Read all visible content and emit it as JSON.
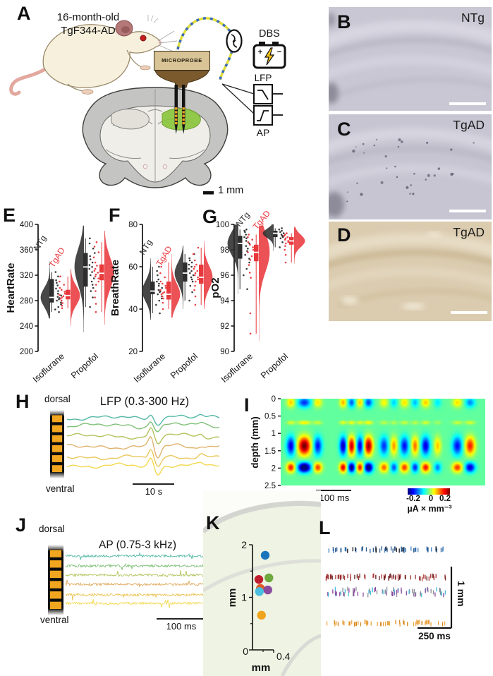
{
  "figure": {
    "panels": {
      "a": {
        "label": "A",
        "subject_line1": "16-month-old",
        "subject_line2": "TgF344-AD",
        "microprobe_label": "MICROPROBE",
        "dbs_label": "DBS",
        "lfp_label": "LFP",
        "ap_label": "AP",
        "scalebar_label": "1 mm"
      },
      "b": {
        "label": "B",
        "genotype": "NTg"
      },
      "c": {
        "label": "C",
        "genotype": "TgAD"
      },
      "d": {
        "label": "D",
        "genotype": "TgAD"
      },
      "e": {
        "label": "E"
      },
      "f": {
        "label": "F"
      },
      "g": {
        "label": "G"
      },
      "h": {
        "label": "H",
        "dorsal": "dorsal",
        "ventral": "ventral"
      },
      "i": {
        "label": "I"
      },
      "j": {
        "label": "J",
        "dorsal": "dorsal",
        "ventral": "ventral"
      },
      "k": {
        "label": "K"
      },
      "l": {
        "label": "L"
      }
    }
  },
  "chart_data": [
    {
      "id": "E",
      "type": "raincloud",
      "ylabel": "HeartRate",
      "ylim": [
        200,
        400
      ],
      "yticks": [
        200,
        240,
        280,
        320,
        360,
        400
      ],
      "categories": [
        "Isoflurane",
        "Propofol"
      ],
      "groups": [
        {
          "name": "NTg",
          "color": "#2e2e2e"
        },
        {
          "name": "TgAD",
          "color": "#e8393d"
        }
      ],
      "cells": [
        {
          "category": "Isoflurane",
          "group": "NTg",
          "violin_range": [
            252,
            342
          ],
          "box": [
            277,
            314
          ],
          "median": 285,
          "points": [
            262,
            266,
            270,
            274,
            277,
            280,
            282,
            284,
            286,
            288,
            291,
            295,
            299,
            304,
            308,
            312,
            318,
            325
          ]
        },
        {
          "category": "Isoflurane",
          "group": "TgAD",
          "violin_range": [
            240,
            330
          ],
          "box": [
            282,
            297
          ],
          "median": 288,
          "points": [
            268,
            272,
            276,
            280,
            283,
            285,
            287,
            289,
            291,
            294,
            297,
            300,
            305,
            310,
            318
          ]
        },
        {
          "category": "Propofol",
          "group": "NTg",
          "violin_range": [
            230,
            398
          ],
          "box": [
            302,
            355
          ],
          "median": 333,
          "points": [
            270,
            285,
            295,
            300,
            305,
            310,
            315,
            320,
            325,
            330,
            333,
            336,
            340,
            345,
            350,
            355,
            362,
            370,
            378
          ]
        },
        {
          "category": "Propofol",
          "group": "TgAD",
          "violin_range": [
            242,
            390
          ],
          "box": [
            312,
            337
          ],
          "median": 323,
          "points": [
            262,
            275,
            285,
            295,
            305,
            310,
            315,
            318,
            321,
            324,
            327,
            330,
            335,
            340,
            348,
            356,
            365,
            372
          ]
        }
      ]
    },
    {
      "id": "F",
      "type": "raincloud",
      "ylabel": "BreathRate",
      "ylim": [
        20,
        80
      ],
      "yticks": [
        20,
        40,
        60,
        80
      ],
      "categories": [
        "Isoflurane",
        "Propofol"
      ],
      "groups": [
        {
          "name": "NTg",
          "color": "#2e2e2e"
        },
        {
          "name": "TgAD",
          "color": "#e8393d"
        }
      ],
      "cells": [
        {
          "category": "Isoflurane",
          "group": "NTg",
          "violin_range": [
            35,
            64
          ],
          "box": [
            47,
            53
          ],
          "median": 48.5,
          "points": [
            38,
            42,
            44,
            45,
            46,
            47,
            48,
            48.5,
            49,
            50,
            51,
            52,
            53,
            54,
            56,
            58,
            60
          ]
        },
        {
          "category": "Isoflurane",
          "group": "TgAD",
          "violin_range": [
            36,
            66
          ],
          "box": [
            44.5,
            53
          ],
          "median": 47,
          "points": [
            40,
            43,
            45,
            46,
            47,
            47.5,
            48,
            49,
            50,
            51,
            52,
            53,
            55,
            57,
            60,
            62
          ]
        },
        {
          "category": "Propofol",
          "group": "NTg",
          "violin_range": [
            40,
            70
          ],
          "box": [
            53,
            62
          ],
          "median": 57,
          "points": [
            44,
            48,
            51,
            53,
            54,
            55,
            56,
            57,
            58,
            59,
            60,
            61,
            62,
            63,
            64,
            66
          ]
        },
        {
          "category": "Propofol",
          "group": "TgAD",
          "violin_range": [
            40,
            72
          ],
          "box": [
            52,
            61
          ],
          "median": 55,
          "points": [
            42,
            46,
            49,
            51,
            53,
            54,
            55,
            56,
            57,
            58,
            59,
            60,
            61,
            63,
            66,
            69
          ]
        }
      ]
    },
    {
      "id": "G",
      "type": "raincloud",
      "ylabel": "pO2",
      "ylim": [
        90,
        100
      ],
      "yticks": [
        90,
        92,
        94,
        96,
        98,
        100
      ],
      "categories": [
        "Isoflurane",
        "Propofol"
      ],
      "groups": [
        {
          "name": "NTg",
          "color": "#2e2e2e"
        },
        {
          "name": "TgAD",
          "color": "#e8393d"
        }
      ],
      "cells": [
        {
          "category": "Isoflurane",
          "group": "NTg",
          "violin_range": [
            94.5,
            100
          ],
          "box": [
            97.3,
            99.1
          ],
          "median": 98.5,
          "points": [
            94.9,
            96.0,
            96.5,
            97.0,
            97.3,
            97.6,
            97.9,
            98.1,
            98.3,
            98.5,
            98.7,
            98.9,
            99.0,
            99.2,
            99.4,
            99.5,
            99.6
          ]
        },
        {
          "category": "Isoflurane",
          "group": "TgAD",
          "violin_range": [
            90.8,
            99.9
          ],
          "box": [
            97.1,
            98.4
          ],
          "median": 97.8,
          "points": [
            91.4,
            93.0,
            95.8,
            96.2,
            96.8,
            97.2,
            97.5,
            97.8,
            98.0,
            98.2,
            98.4,
            98.6,
            98.8,
            99.0,
            99.2
          ]
        },
        {
          "category": "Propofol",
          "group": "NTg",
          "violin_range": [
            97.9,
            100
          ],
          "box": [
            99.0,
            99.5
          ],
          "median": 99.3,
          "points": [
            98.2,
            98.6,
            98.9,
            99.0,
            99.1,
            99.2,
            99.3,
            99.4,
            99.5,
            99.6,
            99.7
          ]
        },
        {
          "category": "Propofol",
          "group": "TgAD",
          "violin_range": [
            96.9,
            99.8
          ],
          "box": [
            98.4,
            99.0
          ],
          "median": 98.7,
          "points": [
            97.0,
            97.6,
            98.0,
            98.3,
            98.5,
            98.6,
            98.7,
            98.8,
            98.9,
            99.0,
            99.1,
            99.2,
            99.3
          ]
        }
      ]
    },
    {
      "id": "H",
      "type": "line",
      "title": "LFP (0.3-300 Hz)",
      "n_channels": 6,
      "trace_colors": [
        "#53b8a5",
        "#7fc077",
        "#b2c35c",
        "#e0b36c",
        "#eac75c",
        "#f2d84e"
      ],
      "scalebar": "10 s"
    },
    {
      "id": "I",
      "type": "heatmap",
      "ylabel": "depth (mm)",
      "yticks": [
        0,
        0.5,
        1,
        1.5,
        2,
        2.5
      ],
      "clim": [
        -0.2,
        0.2
      ],
      "colormap": "jet",
      "scalebar": "100 ms",
      "colorbar_ticks": [
        "-0.2",
        "0",
        "0.2"
      ],
      "colorbar_label": "µA × mm⁻³"
    },
    {
      "id": "J",
      "type": "line",
      "title": "AP (0.75-3 kHz)",
      "n_channels": 6,
      "trace_colors": [
        "#53b8a5",
        "#7fc077",
        "#b2c35c",
        "#e0a95c",
        "#eac24e",
        "#f2d84e"
      ],
      "scalebar": "100 ms"
    },
    {
      "id": "K",
      "type": "scatter",
      "xlabel": "mm",
      "ylabel": "mm",
      "xlim": [
        0,
        0.4
      ],
      "ylim": [
        0,
        2
      ],
      "xticks": [
        0,
        0.4
      ],
      "yticks": [
        0,
        1,
        2
      ],
      "points": [
        {
          "x": 0.24,
          "y": 1.8,
          "color": "#1b75bc"
        },
        {
          "x": 0.12,
          "y": 1.34,
          "color": "#be1e2d"
        },
        {
          "x": 0.31,
          "y": 1.37,
          "color": "#6fa83c"
        },
        {
          "x": 0.15,
          "y": 1.17,
          "color": "#e05a26"
        },
        {
          "x": 0.13,
          "y": 1.11,
          "color": "#48bfe0"
        },
        {
          "x": 0.29,
          "y": 1.14,
          "color": "#8a4a9e"
        },
        {
          "x": 0.17,
          "y": 0.66,
          "color": "#f0a31c"
        }
      ]
    },
    {
      "id": "L",
      "type": "raster",
      "vscale": "1 mm",
      "hscale": "250 ms",
      "rows": [
        {
          "colors": [
            "#3f80c0",
            "#27588e",
            "#15151f"
          ],
          "n": 58
        },
        {
          "colors": [
            "#b23c3c",
            "#8e2a2a",
            "#5a1a1a"
          ],
          "n": 66
        },
        {
          "colors": [
            "#48bfe0",
            "#8a4a9e",
            "#8b8b99"
          ],
          "n": 80
        },
        {
          "colors": [
            "#eda43e",
            "#d98a20"
          ],
          "n": 52
        }
      ]
    }
  ]
}
